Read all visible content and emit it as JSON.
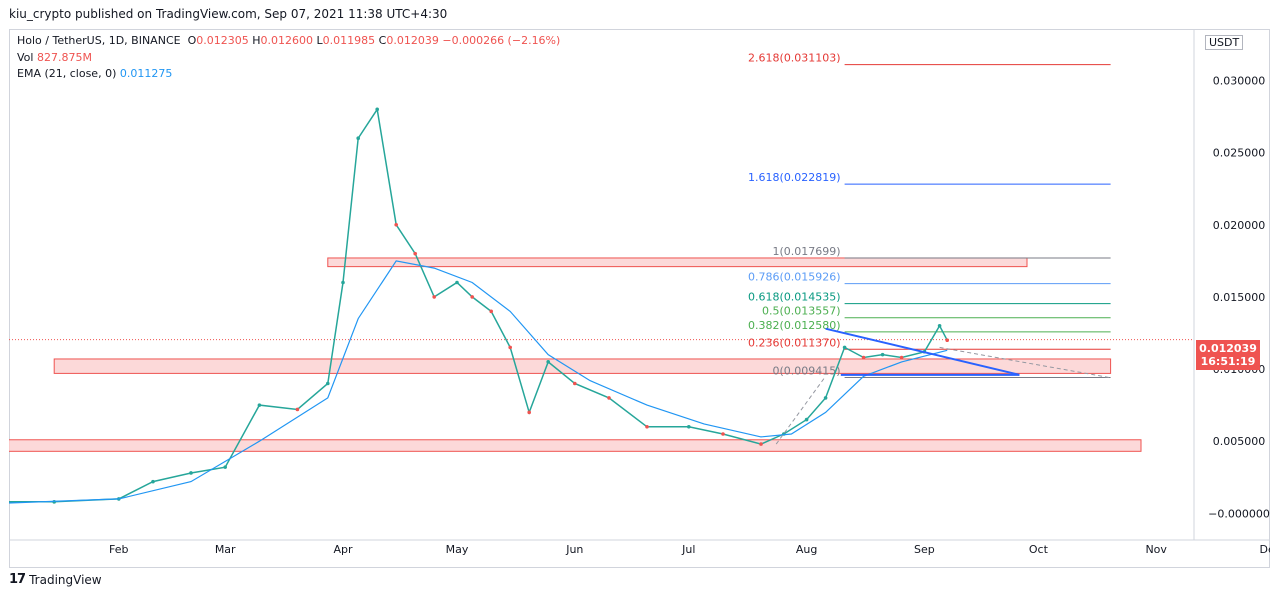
{
  "publisher": "kiu_crypto published on TradingView.com, Sep 07, 2021 11:38 UTC+4:30",
  "legend": {
    "symbol": "Holo / TetherUS, 1D, BINANCE",
    "o_label": "O",
    "o": "0.012305",
    "h_label": "H",
    "h": "0.012600",
    "l_label": "L",
    "l": "0.011985",
    "c_label": "C",
    "c": "0.012039",
    "change": "−0.000266 (−2.16%)",
    "vol_label": "Vol",
    "vol": "827.875M",
    "ema_label": "EMA (21, close, 0)",
    "ema": "0.011275"
  },
  "scale_badge": "USDT",
  "price_tag": {
    "price": "0.012039",
    "countdown": "16:51:19"
  },
  "footer": {
    "logo": "17",
    "brand": "TradingView"
  },
  "colors": {
    "up": "#26a69a",
    "down": "#ef5350",
    "ema": "#2196f3",
    "zone_fill": "#fcd9d9",
    "zone_border": "#ef5350"
  },
  "chart_data": {
    "type": "line",
    "title": "Holo / TetherUS, 1D, BINANCE",
    "ylim": [
      -0.0015,
      0.0335
    ],
    "y_ticks": [
      "0.030000",
      "0.025000",
      "0.020000",
      "0.015000",
      "0.010000",
      "0.005000",
      "−0.000000"
    ],
    "x_ticks": [
      "Feb",
      "Mar",
      "Apr",
      "May",
      "Jun",
      "Jul",
      "Aug",
      "Sep",
      "Oct",
      "Nov",
      "Dec"
    ],
    "x_start": "2021-01-01",
    "close_series": {
      "name": "Close",
      "dates": [
        "2021-01-01",
        "2021-01-15",
        "2021-02-01",
        "2021-02-10",
        "2021-02-20",
        "2021-03-01",
        "2021-03-10",
        "2021-03-20",
        "2021-03-28",
        "2021-04-01",
        "2021-04-05",
        "2021-04-10",
        "2021-04-15",
        "2021-04-20",
        "2021-04-25",
        "2021-05-01",
        "2021-05-05",
        "2021-05-10",
        "2021-05-15",
        "2021-05-20",
        "2021-05-25",
        "2021-06-01",
        "2021-06-10",
        "2021-06-20",
        "2021-07-01",
        "2021-07-10",
        "2021-07-20",
        "2021-07-26",
        "2021-08-01",
        "2021-08-06",
        "2021-08-11",
        "2021-08-16",
        "2021-08-21",
        "2021-08-26",
        "2021-09-01",
        "2021-09-05",
        "2021-09-07"
      ],
      "values": [
        0.0008,
        0.0008,
        0.001,
        0.0022,
        0.0028,
        0.0032,
        0.0075,
        0.0072,
        0.009,
        0.016,
        0.026,
        0.028,
        0.02,
        0.018,
        0.015,
        0.016,
        0.015,
        0.014,
        0.0115,
        0.007,
        0.0105,
        0.009,
        0.008,
        0.006,
        0.006,
        0.0055,
        0.0048,
        0.0055,
        0.0065,
        0.008,
        0.0115,
        0.0108,
        0.011,
        0.0108,
        0.0112,
        0.013,
        0.012
      ]
    },
    "ema_series": {
      "name": "EMA (21, close, 0)",
      "dates": [
        "2021-01-01",
        "2021-02-01",
        "2021-02-20",
        "2021-03-10",
        "2021-03-28",
        "2021-04-05",
        "2021-04-15",
        "2021-04-25",
        "2021-05-05",
        "2021-05-15",
        "2021-05-25",
        "2021-06-05",
        "2021-06-20",
        "2021-07-05",
        "2021-07-20",
        "2021-07-28",
        "2021-08-06",
        "2021-08-16",
        "2021-08-26",
        "2021-09-07"
      ],
      "values": [
        0.0007,
        0.001,
        0.0022,
        0.005,
        0.008,
        0.0135,
        0.0175,
        0.017,
        0.016,
        0.014,
        0.011,
        0.0092,
        0.0075,
        0.0062,
        0.0053,
        0.0055,
        0.007,
        0.0095,
        0.0105,
        0.0113
      ]
    },
    "fib_levels": [
      {
        "label": "2.618(0.031103)",
        "value": 0.031103,
        "color": "#e53935"
      },
      {
        "label": "1.618(0.022819)",
        "value": 0.022819,
        "color": "#2962ff"
      },
      {
        "label": "1(0.017699)",
        "value": 0.017699,
        "color": "#787b86"
      },
      {
        "label": "0.786(0.015926)",
        "value": 0.015926,
        "color": "#5b9cf6"
      },
      {
        "label": "0.618(0.014535)",
        "value": 0.014535,
        "color": "#089981"
      },
      {
        "label": "0.5(0.013557)",
        "value": 0.013557,
        "color": "#4caf50"
      },
      {
        "label": "0.382(0.012580)",
        "value": 0.01258,
        "color": "#4caf50"
      },
      {
        "label": "0.236(0.011370)",
        "value": 0.01137,
        "color": "#e53935"
      },
      {
        "label": "0(0.009415)",
        "value": 0.009415,
        "color": "#787b86"
      }
    ],
    "fib_range": {
      "start": "2021-08-11",
      "end": "2021-10-20"
    },
    "zones": [
      {
        "date_start": "2021-03-28",
        "date_end": "2021-09-28",
        "y_low": 0.0171,
        "y_high": 0.0177
      },
      {
        "date_start": "2021-01-15",
        "date_end": "2021-10-20",
        "y_low": 0.0097,
        "y_high": 0.0107
      },
      {
        "date_start": "2021-01-03",
        "date_end": "2021-10-28",
        "y_low": 0.0043,
        "y_high": 0.0051
      }
    ],
    "trendlines": [
      {
        "d1": "2021-08-06",
        "y1": 0.0128,
        "d2": "2021-09-26",
        "y2": 0.0096,
        "color": "#2962ff",
        "width": 2
      },
      {
        "d1": "2021-08-10",
        "y1": 0.0096,
        "d2": "2021-09-26",
        "y2": 0.0096,
        "color": "#2962ff",
        "width": 2
      },
      {
        "d1": "2021-07-24",
        "y1": 0.0048,
        "d2": "2021-08-06",
        "y2": 0.0095,
        "color": "#9598a1",
        "width": 1,
        "dash": true
      },
      {
        "d1": "2021-09-05",
        "y1": 0.0115,
        "d2": "2021-10-20",
        "y2": 0.0094,
        "color": "#9598a1",
        "width": 1,
        "dash": true
      }
    ],
    "last_price": 0.012039
  }
}
